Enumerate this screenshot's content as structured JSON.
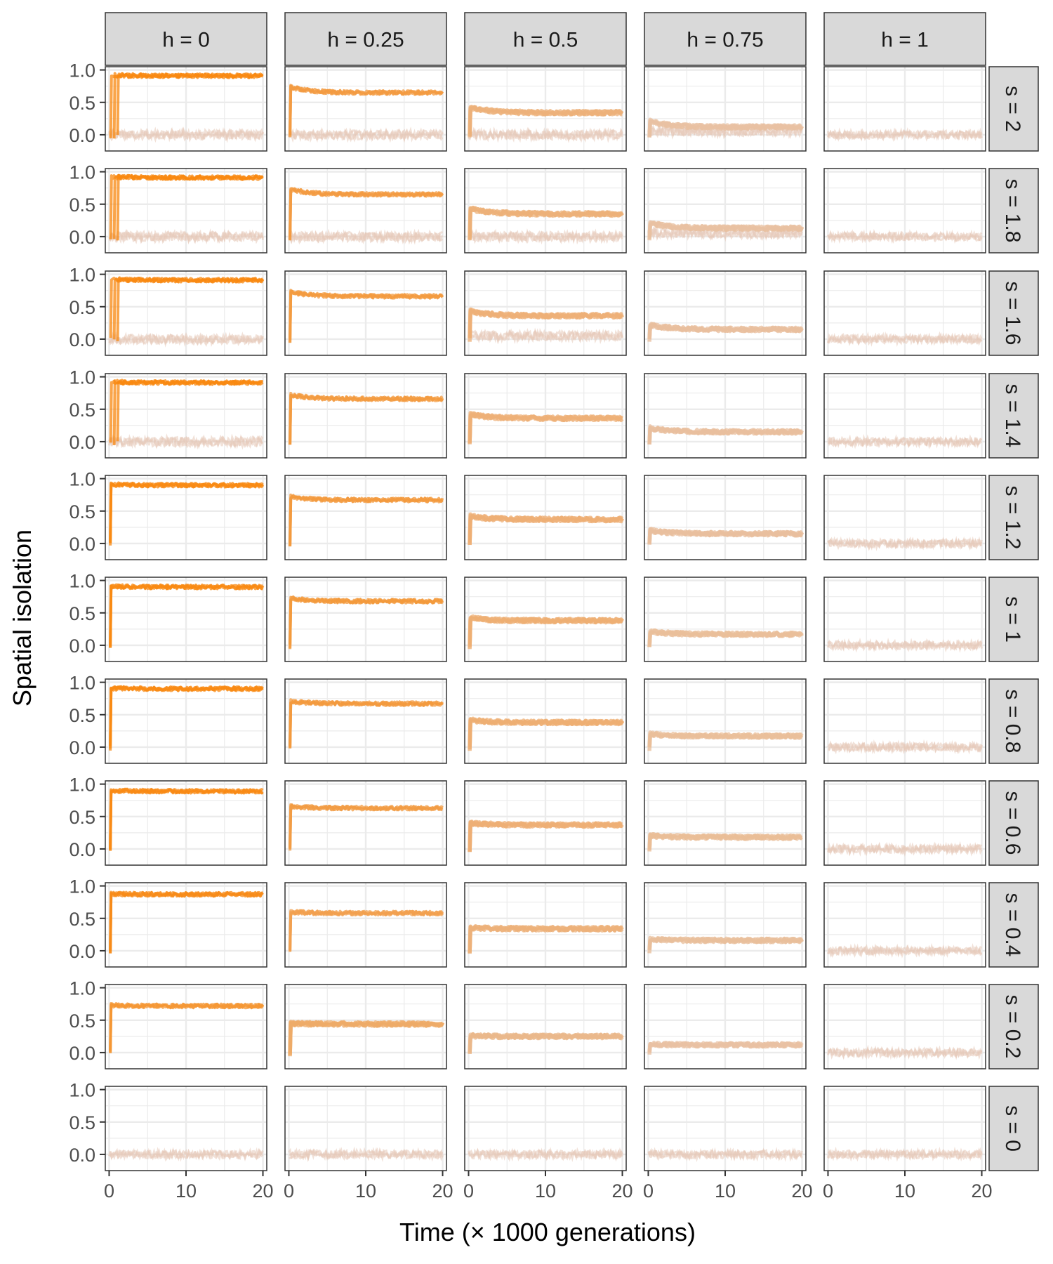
{
  "chart_data": {
    "type": "line",
    "xlabel": "Time (× 1000 generations)",
    "ylabel": "Spatial isolation",
    "x_ticks": [
      "0",
      "10",
      "20"
    ],
    "y_ticks": [
      "0.0",
      "0.5",
      "1.0"
    ],
    "xlim": [
      -0.5,
      20.5
    ],
    "ylim": [
      -0.25,
      1.05
    ],
    "grid": true,
    "facet_columns": [
      {
        "label": "h = 0",
        "h": 0
      },
      {
        "label": "h = 0.25",
        "h": 0.25
      },
      {
        "label": "h = 0.5",
        "h": 0.5
      },
      {
        "label": "h = 0.75",
        "h": 0.75
      },
      {
        "label": "h = 1",
        "h": 1
      }
    ],
    "facet_rows": [
      {
        "label": "s = 2",
        "s": 2,
        "plateau": [
          0.91,
          0.65,
          0.34,
          0.12,
          0.0
        ],
        "secondary": [
          0.0,
          0.0,
          0.0,
          0.05,
          null
        ]
      },
      {
        "label": "s = 1.8",
        "s": 1.8,
        "plateau": [
          0.91,
          0.65,
          0.35,
          0.13,
          0.0
        ],
        "secondary": [
          0.0,
          0.0,
          0.0,
          0.05,
          null
        ]
      },
      {
        "label": "s = 1.6",
        "s": 1.6,
        "plateau": [
          0.91,
          0.66,
          0.36,
          0.15,
          0.0
        ],
        "secondary": [
          0.0,
          null,
          0.05,
          null,
          null
        ]
      },
      {
        "label": "s = 1.4",
        "s": 1.4,
        "plateau": [
          0.91,
          0.66,
          0.36,
          0.15,
          0.0
        ],
        "secondary": [
          0.0,
          null,
          null,
          null,
          null
        ]
      },
      {
        "label": "s = 1.2",
        "s": 1.2,
        "plateau": [
          0.9,
          0.67,
          0.37,
          0.15,
          0.0
        ],
        "secondary": [
          null,
          null,
          null,
          null,
          null
        ]
      },
      {
        "label": "s = 1",
        "s": 1,
        "plateau": [
          0.9,
          0.68,
          0.38,
          0.17,
          0.0
        ],
        "secondary": [
          null,
          null,
          null,
          null,
          null
        ]
      },
      {
        "label": "s = 0.8",
        "s": 0.8,
        "plateau": [
          0.9,
          0.67,
          0.38,
          0.17,
          0.0
        ],
        "secondary": [
          null,
          null,
          null,
          null,
          null
        ]
      },
      {
        "label": "s = 0.6",
        "s": 0.6,
        "plateau": [
          0.89,
          0.63,
          0.37,
          0.18,
          0.0
        ],
        "secondary": [
          null,
          null,
          null,
          null,
          null
        ]
      },
      {
        "label": "s = 0.4",
        "s": 0.4,
        "plateau": [
          0.87,
          0.58,
          0.34,
          0.16,
          0.0
        ],
        "secondary": [
          null,
          null,
          null,
          null,
          null
        ]
      },
      {
        "label": "s = 0.2",
        "s": 0.2,
        "plateau": [
          0.72,
          0.44,
          0.25,
          0.12,
          0.0
        ],
        "secondary": [
          null,
          null,
          null,
          null,
          null
        ]
      },
      {
        "label": "s = 0",
        "s": 0,
        "plateau": [
          0.0,
          0.0,
          0.0,
          0.0,
          0.0
        ],
        "secondary": [
          null,
          null,
          null,
          null,
          null
        ]
      }
    ],
    "colors": {
      "strong": "#F8870E",
      "weak": "#E5C9B8",
      "strip_bg": "#D9D9D9",
      "grid": "#EBEBEB",
      "border": "#333333"
    }
  }
}
